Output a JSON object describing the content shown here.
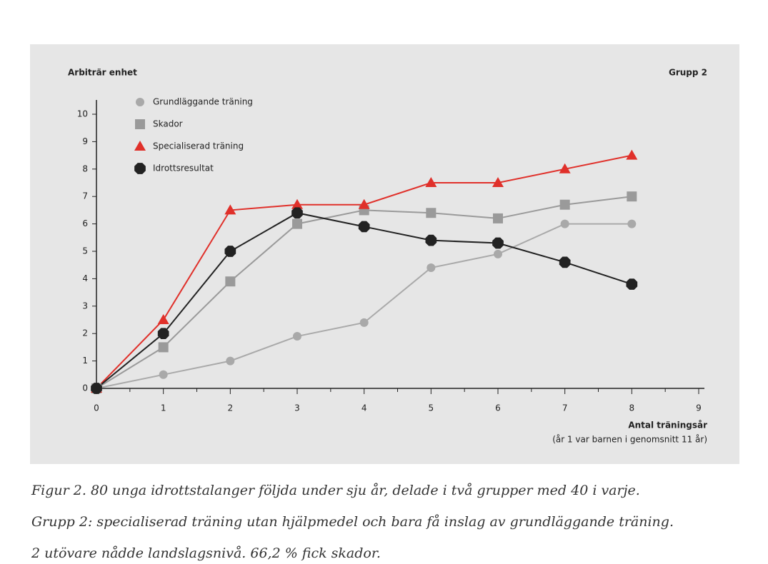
{
  "chart_data": {
    "type": "line",
    "y_label": "Arbiträr enhet",
    "group_label": "Grupp 2",
    "x_label": "Antal träningsår",
    "x_note": "(år 1 var barnen i genomsnitt 11 år)",
    "x": [
      0,
      1,
      2,
      3,
      4,
      5,
      6,
      7,
      8
    ],
    "series": [
      {
        "name": "Grundläggande träning",
        "color": "#a9a9a9",
        "marker": "circle",
        "values": [
          0,
          0.5,
          1.0,
          1.9,
          2.4,
          4.4,
          4.9,
          6.0,
          6.0
        ]
      },
      {
        "name": "Skador",
        "color": "#9a9a9a",
        "marker": "square",
        "values": [
          0,
          1.5,
          3.9,
          6.0,
          6.5,
          6.4,
          6.2,
          6.7,
          7.0
        ]
      },
      {
        "name": "Specialiserad träning",
        "color": "#e0302a",
        "marker": "triangle",
        "values": [
          0,
          2.5,
          6.5,
          6.7,
          6.7,
          7.5,
          7.5,
          8.0,
          8.5
        ]
      },
      {
        "name": "Idrottsresultat",
        "color": "#222222",
        "marker": "hexagon",
        "values": [
          0,
          2.0,
          5.0,
          6.4,
          5.9,
          5.4,
          5.3,
          4.6,
          3.8
        ]
      }
    ],
    "xlim": [
      0,
      9
    ],
    "ylim": [
      0,
      10
    ],
    "xticks": [
      0,
      1,
      2,
      3,
      4,
      5,
      6,
      7,
      8,
      9
    ],
    "yticks": [
      0,
      1,
      2,
      3,
      4,
      5,
      6,
      7,
      8,
      9,
      10
    ],
    "caption": [
      "Figur 2. 80 unga idrottstalanger följda under sju år, delade i två grupper med 40 i varje.",
      "Grupp 2: specialiserad träning utan hjälpmedel och bara få inslag av grundläggande träning.",
      "2 utövare nådde landslagsnivå. 66,2 % fick skador."
    ]
  }
}
